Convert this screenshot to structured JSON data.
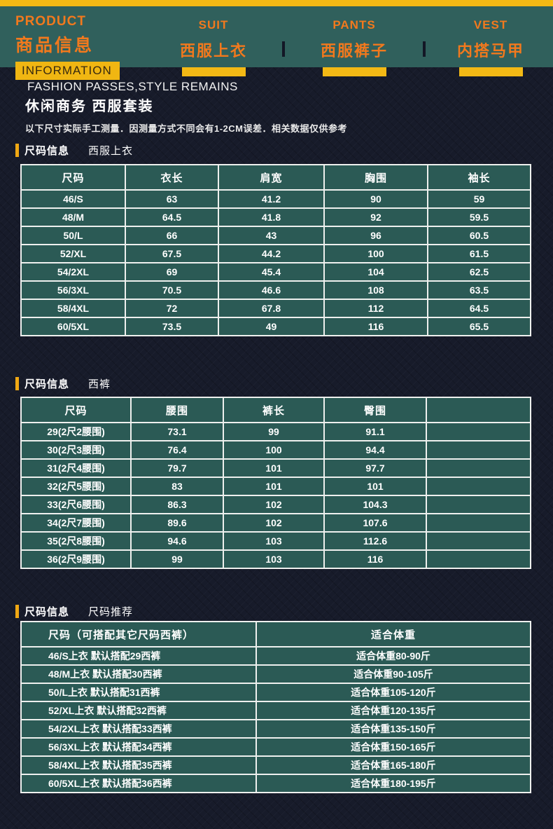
{
  "colors": {
    "page_bg": "#171b2a",
    "header_teal": "#30605c",
    "accent_orange": "#f2791d",
    "accent_yellow": "#f3b915",
    "cell_teal": "#2b5a55",
    "table_border": "#eef0ee"
  },
  "header": {
    "brand": {
      "en": "PRODUCT",
      "cn": "商品信息",
      "sub": "INFORMATION"
    },
    "tabs": [
      {
        "en": "SUIT",
        "cn": "西服上衣"
      },
      {
        "en": "PANTS",
        "cn": "西服裤子"
      },
      {
        "en": "VEST",
        "cn": "内搭马甲"
      }
    ]
  },
  "intro": {
    "tagline_en": "FASHION PASSES,STYLE REMAINS",
    "tagline_cn": "休闲商务 西服套装",
    "disclaimer": "以下尺寸实际手工测量．因测量方式不同会有1-2CM误差．相关数据仅供参考"
  },
  "sections": [
    {
      "label": "尺码信息",
      "sub": "西服上衣"
    },
    {
      "label": "尺码信息",
      "sub": "西裤"
    },
    {
      "label": "尺码信息",
      "sub": "尺码推荐"
    }
  ],
  "tables": {
    "jacket": {
      "headers": [
        "尺码",
        "衣长",
        "肩宽",
        "胸围",
        "袖长"
      ],
      "rows": [
        [
          "46/S",
          "63",
          "41.2",
          "90",
          "59"
        ],
        [
          "48/M",
          "64.5",
          "41.8",
          "92",
          "59.5"
        ],
        [
          "50/L",
          "66",
          "43",
          "96",
          "60.5"
        ],
        [
          "52/XL",
          "67.5",
          "44.2",
          "100",
          "61.5"
        ],
        [
          "54/2XL",
          "69",
          "45.4",
          "104",
          "62.5"
        ],
        [
          "56/3XL",
          "70.5",
          "46.6",
          "108",
          "63.5"
        ],
        [
          "58/4XL",
          "72",
          "67.8",
          "112",
          "64.5"
        ],
        [
          "60/5XL",
          "73.5",
          "49",
          "116",
          "65.5"
        ]
      ]
    },
    "pants": {
      "headers": [
        "尺码",
        "腰围",
        "裤长",
        "臀围",
        ""
      ],
      "rows": [
        [
          "29(2尺2腰围)",
          "73.1",
          "99",
          "91.1",
          ""
        ],
        [
          "30(2尺3腰围)",
          "76.4",
          "100",
          "94.4",
          ""
        ],
        [
          "31(2尺4腰围)",
          "79.7",
          "101",
          "97.7",
          ""
        ],
        [
          "32(2尺5腰围)",
          "83",
          "101",
          "101",
          ""
        ],
        [
          "33(2尺6腰围)",
          "86.3",
          "102",
          "104.3",
          ""
        ],
        [
          "34(2尺7腰围)",
          "89.6",
          "102",
          "107.6",
          ""
        ],
        [
          "35(2尺8腰围)",
          "94.6",
          "103",
          "112.6",
          ""
        ],
        [
          "36(2尺9腰围)",
          "99",
          "103",
          "116",
          ""
        ]
      ]
    },
    "recommend": {
      "headers": [
        "尺码（可搭配其它尺码西裤）",
        "适合体重"
      ],
      "rows": [
        [
          "46/S上衣 默认搭配29西裤",
          "适合体重80-90斤"
        ],
        [
          "48/M上衣 默认搭配30西裤",
          "适合体重90-105斤"
        ],
        [
          "50/L上衣 默认搭配31西裤",
          "适合体重105-120斤"
        ],
        [
          "52/XL上衣 默认搭配32西裤",
          "适合体重120-135斤"
        ],
        [
          "54/2XL上衣 默认搭配33西裤",
          "适合体重135-150斤"
        ],
        [
          "56/3XL上衣 默认搭配34西裤",
          "适合体重150-165斤"
        ],
        [
          "58/4XL上衣 默认搭配35西裤",
          "适合体重165-180斤"
        ],
        [
          "60/5XL上衣 默认搭配36西裤",
          "适合体重180-195斤"
        ]
      ]
    }
  }
}
